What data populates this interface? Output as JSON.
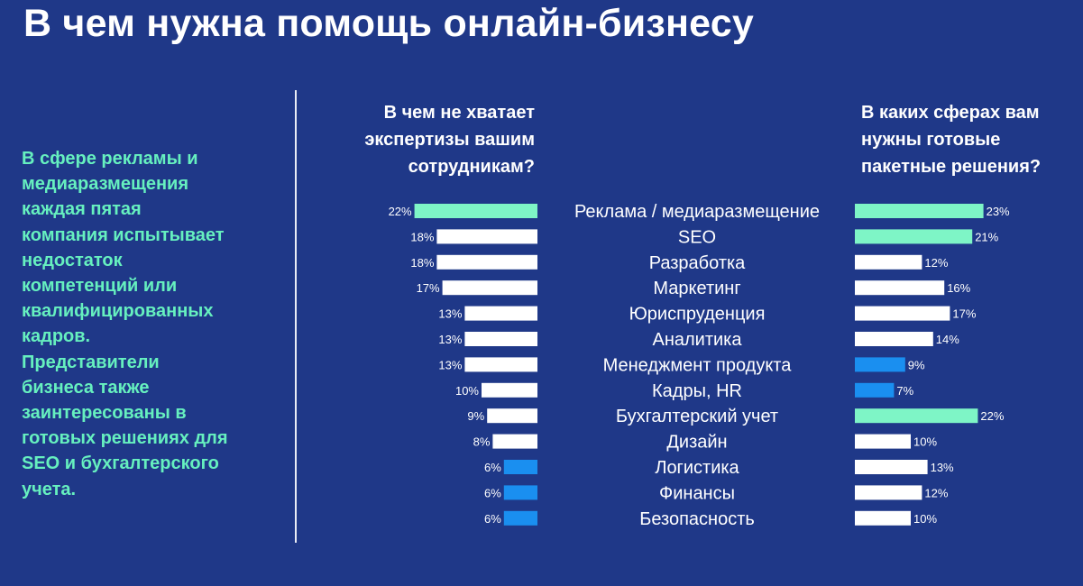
{
  "title": "В чем нужна помощь онлайн-бизнесу",
  "side_text": [
    "В сфере рекламы  и",
    "медиаразмещения",
    "каждая пятая",
    "компания испытывает",
    "недостаток",
    "компетенций или",
    "квалифицированных",
    "кадров.",
    "Представители",
    "бизнеса также",
    "заинтересованы в",
    "готовых решениях для",
    "SEO и бухгалтерского",
    "учета."
  ],
  "left_header": [
    "В чем не хватает",
    "экспертизы вашим",
    "сотрудникам?"
  ],
  "right_header": [
    "В каких сферах вам",
    "нужны готовые",
    "пакетные решения?"
  ],
  "colors": {
    "background": "#1f3888",
    "green": "#7ef5c6",
    "white": "#ffffff",
    "blue": "#1a8ff0",
    "side_text": "#66f0bf"
  },
  "chart_data": {
    "type": "bar",
    "orientation": "horizontal",
    "layout": "butterfly",
    "categories": [
      "Реклама / медиаразмещение",
      "SEO",
      "Разработка",
      "Маркетинг",
      "Юриспруденция",
      "Аналитика",
      "Менеджмент продукта",
      "Кадры, HR",
      "Бухгалтерский учет",
      "Дизайн",
      "Логистика",
      "Финансы",
      "Безопасность"
    ],
    "series": [
      {
        "name": "В чем не хватает экспертизы вашим сотрудникам?",
        "values": [
          22,
          18,
          18,
          17,
          13,
          13,
          13,
          10,
          9,
          8,
          6,
          6,
          6
        ],
        "labels": [
          "22%",
          "18%",
          "18%",
          "17%",
          "13%",
          "13%",
          "13%",
          "10%",
          "9%",
          "8%",
          "6%",
          "6%",
          "6%"
        ],
        "colors": [
          "green",
          "white",
          "white",
          "white",
          "white",
          "white",
          "white",
          "white",
          "white",
          "white",
          "blue",
          "blue",
          "blue"
        ]
      },
      {
        "name": "В каких сферах вам нужны готовые пакетные решения?",
        "values": [
          23,
          21,
          12,
          16,
          17,
          14,
          9,
          7,
          22,
          10,
          13,
          12,
          10
        ],
        "labels": [
          "23%",
          "21%",
          "12%",
          "16%",
          "17%",
          "14%",
          "9%",
          "7%",
          "22%",
          "10%",
          "13%",
          "12%",
          "10%"
        ],
        "colors": [
          "green",
          "green",
          "white",
          "white",
          "white",
          "white",
          "blue",
          "blue",
          "green",
          "white",
          "white",
          "white",
          "white"
        ]
      }
    ],
    "unit": "%"
  }
}
